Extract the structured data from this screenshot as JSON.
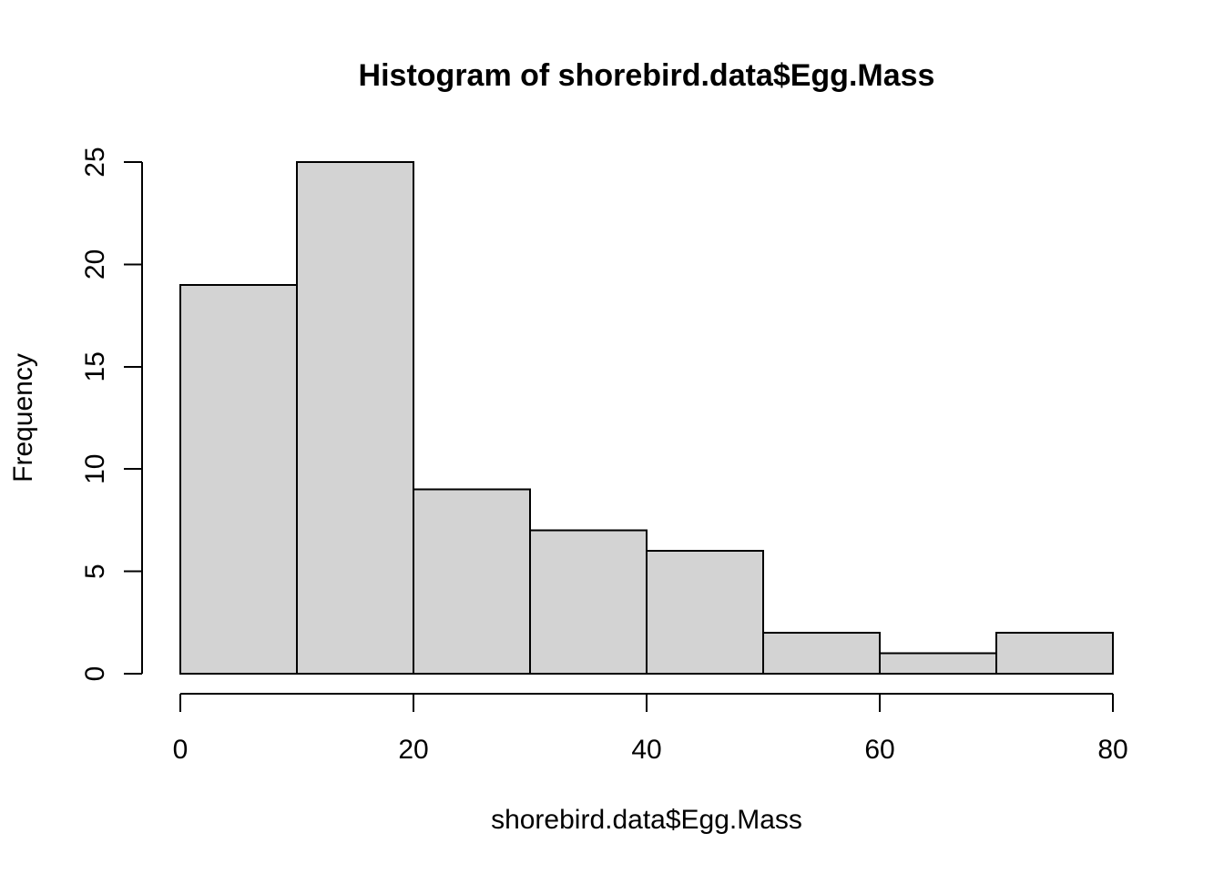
{
  "chart_data": {
    "type": "bar",
    "subtype": "histogram",
    "title": "Histogram of shorebird.data$Egg.Mass",
    "xlabel": "shorebird.data$Egg.Mass",
    "ylabel": "Frequency",
    "bin_edges": [
      0,
      10,
      20,
      30,
      40,
      50,
      60,
      70,
      80
    ],
    "counts": [
      19,
      25,
      9,
      7,
      6,
      2,
      1,
      2
    ],
    "bin_width": 10,
    "xlim": [
      0,
      80
    ],
    "ylim": [
      0,
      25
    ],
    "x_ticks": [
      0,
      20,
      40,
      60,
      80
    ],
    "y_ticks": [
      0,
      5,
      10,
      15,
      20,
      25
    ],
    "grid": false,
    "legend": "none",
    "bar_fill": "#d3d3d3",
    "bar_stroke": "#000000",
    "axis_color": "#000000",
    "text_color": "#000000",
    "background": "#ffffff"
  }
}
